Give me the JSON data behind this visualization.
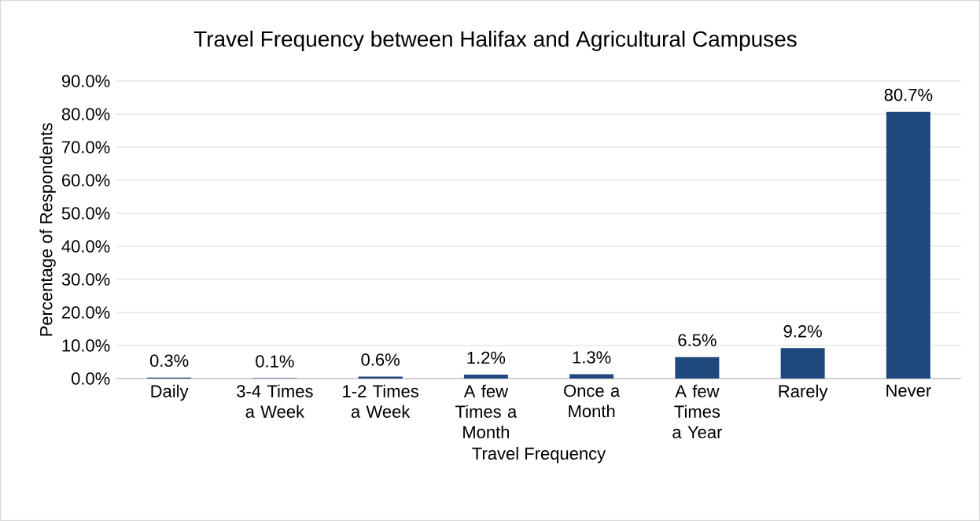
{
  "chart_data": {
    "type": "bar",
    "title": "Travel Frequency between Halifax and Agricultural Campuses",
    "xlabel": "Travel Frequency",
    "ylabel": "Percentage of Respondents",
    "categories": [
      "Daily",
      "3-4 Times a Week",
      "1-2 Times a Week",
      "A few Times a Month",
      "Once a Month",
      "A few Times a Year",
      "Rarely",
      "Never"
    ],
    "values": [
      0.3,
      0.1,
      0.6,
      1.2,
      1.3,
      6.5,
      9.2,
      80.7
    ],
    "value_labels": [
      "0.3%",
      "0.1%",
      "0.6%",
      "1.2%",
      "1.3%",
      "6.5%",
      "9.2%",
      "80.7%"
    ],
    "color": "#1f497d",
    "ylim": [
      0,
      90
    ],
    "yticks": [
      {
        "value": 0,
        "label": "0.0%"
      },
      {
        "value": 10,
        "label": "10.0%"
      },
      {
        "value": 20,
        "label": "20.0%"
      },
      {
        "value": 30,
        "label": "30.0%"
      },
      {
        "value": 40,
        "label": "40.0%"
      },
      {
        "value": 50,
        "label": "50.0%"
      },
      {
        "value": 60,
        "label": "60.0%"
      },
      {
        "value": 70,
        "label": "70.0%"
      },
      {
        "value": 80,
        "label": "80.0%"
      },
      {
        "value": 90,
        "label": "90.0%"
      }
    ],
    "grid": "y"
  }
}
